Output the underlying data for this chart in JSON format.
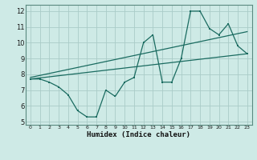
{
  "xlabel": "Humidex (Indice chaleur)",
  "xlim": [
    -0.5,
    23.5
  ],
  "ylim": [
    4.8,
    12.4
  ],
  "yticks": [
    5,
    6,
    7,
    8,
    9,
    10,
    11,
    12
  ],
  "xticks": [
    0,
    1,
    2,
    3,
    4,
    5,
    6,
    7,
    8,
    9,
    10,
    11,
    12,
    13,
    14,
    15,
    16,
    17,
    18,
    19,
    20,
    21,
    22,
    23
  ],
  "bg_color": "#ceeae6",
  "grid_color": "#aaccc8",
  "line_color": "#1a6b60",
  "line1_x": [
    0,
    1,
    2,
    3,
    4,
    5,
    6,
    7,
    8,
    9,
    10,
    11,
    12,
    13,
    14,
    15,
    16,
    17,
    18,
    19,
    20,
    21,
    22,
    23
  ],
  "line1_y": [
    7.7,
    7.7,
    7.5,
    7.2,
    6.7,
    5.7,
    5.3,
    5.3,
    7.0,
    6.6,
    7.5,
    7.8,
    10.0,
    10.5,
    7.5,
    7.5,
    9.0,
    12.0,
    12.0,
    10.9,
    10.5,
    11.2,
    9.8,
    9.3
  ],
  "line2_x": [
    0,
    23
  ],
  "line2_y": [
    7.7,
    9.3
  ],
  "line3_x": [
    0,
    23
  ],
  "line3_y": [
    7.8,
    10.7
  ]
}
